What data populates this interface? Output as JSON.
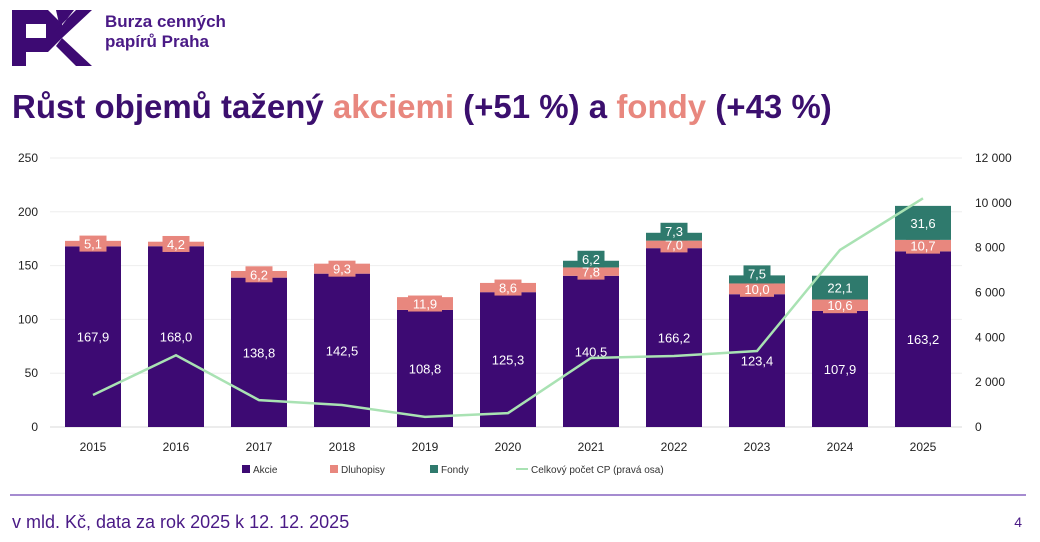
{
  "brand": {
    "line1": "Burza cenných",
    "line2": "papírů Praha",
    "logo_text": "PX"
  },
  "title": {
    "part1": "Růst objemů tažený ",
    "hl1": "akciemi",
    "part2": " (+51 %) a ",
    "hl2": "fondy",
    "part3": " (+43 %)"
  },
  "footer": {
    "note": "v mld. Kč, data za rok 2025 k 12. 12. 2025",
    "page": "4"
  },
  "colors": {
    "akcie": "#3d0a73",
    "dluhopisy": "#e8877e",
    "fondy": "#2f7a6d",
    "line": "#a9e2b3",
    "title": "#3b0f6e"
  },
  "chart_data": {
    "type": "bar",
    "stacked": true,
    "categories": [
      "2015",
      "2016",
      "2017",
      "2018",
      "2019",
      "2020",
      "2021",
      "2022",
      "2023",
      "2024",
      "2025"
    ],
    "series": [
      {
        "name": "Akcie",
        "values": [
          167.9,
          168.0,
          138.8,
          142.5,
          108.8,
          125.3,
          140.5,
          166.2,
          123.4,
          107.9,
          163.2
        ],
        "labels": [
          "167,9",
          "168,0",
          "138,8",
          "142,5",
          "108,8",
          "125,3",
          "140,5",
          "166,2",
          "123,4",
          "107,9",
          "163,2"
        ]
      },
      {
        "name": "Dluhopisy",
        "values": [
          5.1,
          4.2,
          6.2,
          9.3,
          11.9,
          8.6,
          7.8,
          7.0,
          10.0,
          10.6,
          10.7
        ],
        "labels": [
          "5,1",
          "4,2",
          "6,2",
          "9,3",
          "11,9",
          "8,6",
          "7,8",
          "7,0",
          "10,0",
          "10,6",
          "10,7"
        ]
      },
      {
        "name": "Fondy",
        "values": [
          0,
          0,
          0,
          0,
          0,
          0,
          6.2,
          7.3,
          7.5,
          22.1,
          31.6
        ],
        "labels": [
          "",
          "",
          "",
          "",
          "",
          "",
          "6,2",
          "7,3",
          "7,5",
          "22,1",
          "31,6"
        ]
      }
    ],
    "line_series": {
      "name": "Celkový počet CP (pravá osa)",
      "axis": "right",
      "values": [
        1430,
        3200,
        1200,
        980,
        450,
        620,
        3080,
        3170,
        3390,
        7900,
        10200
      ]
    },
    "ylim": [
      0,
      250
    ],
    "yticks": [
      "0",
      "50",
      "100",
      "150",
      "200",
      "250"
    ],
    "y2lim": [
      0,
      12000
    ],
    "y2ticks": [
      "0",
      "2 000",
      "4 000",
      "6 000",
      "8 000",
      "10 000",
      "12 000"
    ],
    "legend": [
      "Akcie",
      "Dluhopisy",
      "Fondy",
      "Celkový počet CP (pravá osa)"
    ],
    "legend_position": "bottom",
    "grid": true
  }
}
